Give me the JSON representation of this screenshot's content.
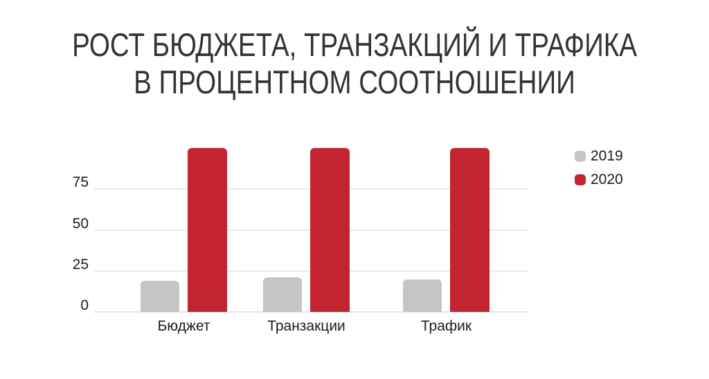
{
  "title": {
    "line1": "РОСТ БЮДЖЕТА, ТРАНЗАКЦИЙ И ТРАФИКА",
    "line2": "В ПРОЦЕНТНОМ СООТНОШЕНИИ"
  },
  "chart_data": {
    "type": "bar",
    "title": "РОСТ БЮДЖЕТА, ТРАНЗАКЦИЙ И ТРАФИКА В ПРОЦЕНТНОМ СООТНОШЕНИИ",
    "categories": [
      "Бюджет",
      "Транзакции",
      "Трафик"
    ],
    "series": [
      {
        "name": "2019",
        "color": "#c5c5c5",
        "values": [
          19,
          21,
          20
        ]
      },
      {
        "name": "2020",
        "color": "#c22530",
        "values": [
          100,
          100,
          100
        ]
      }
    ],
    "yticks": [
      0,
      25,
      50,
      75
    ],
    "ylim": [
      0,
      100
    ],
    "grid": true,
    "legend_position": "right",
    "xlabel": "",
    "ylabel": ""
  },
  "colors": {
    "background": "#ffffff",
    "title_text": "#333333",
    "axis_text": "#1c1c1c",
    "gridline": "#ebebeb",
    "series_2019": "#c5c5c5",
    "series_2020": "#c22530"
  }
}
